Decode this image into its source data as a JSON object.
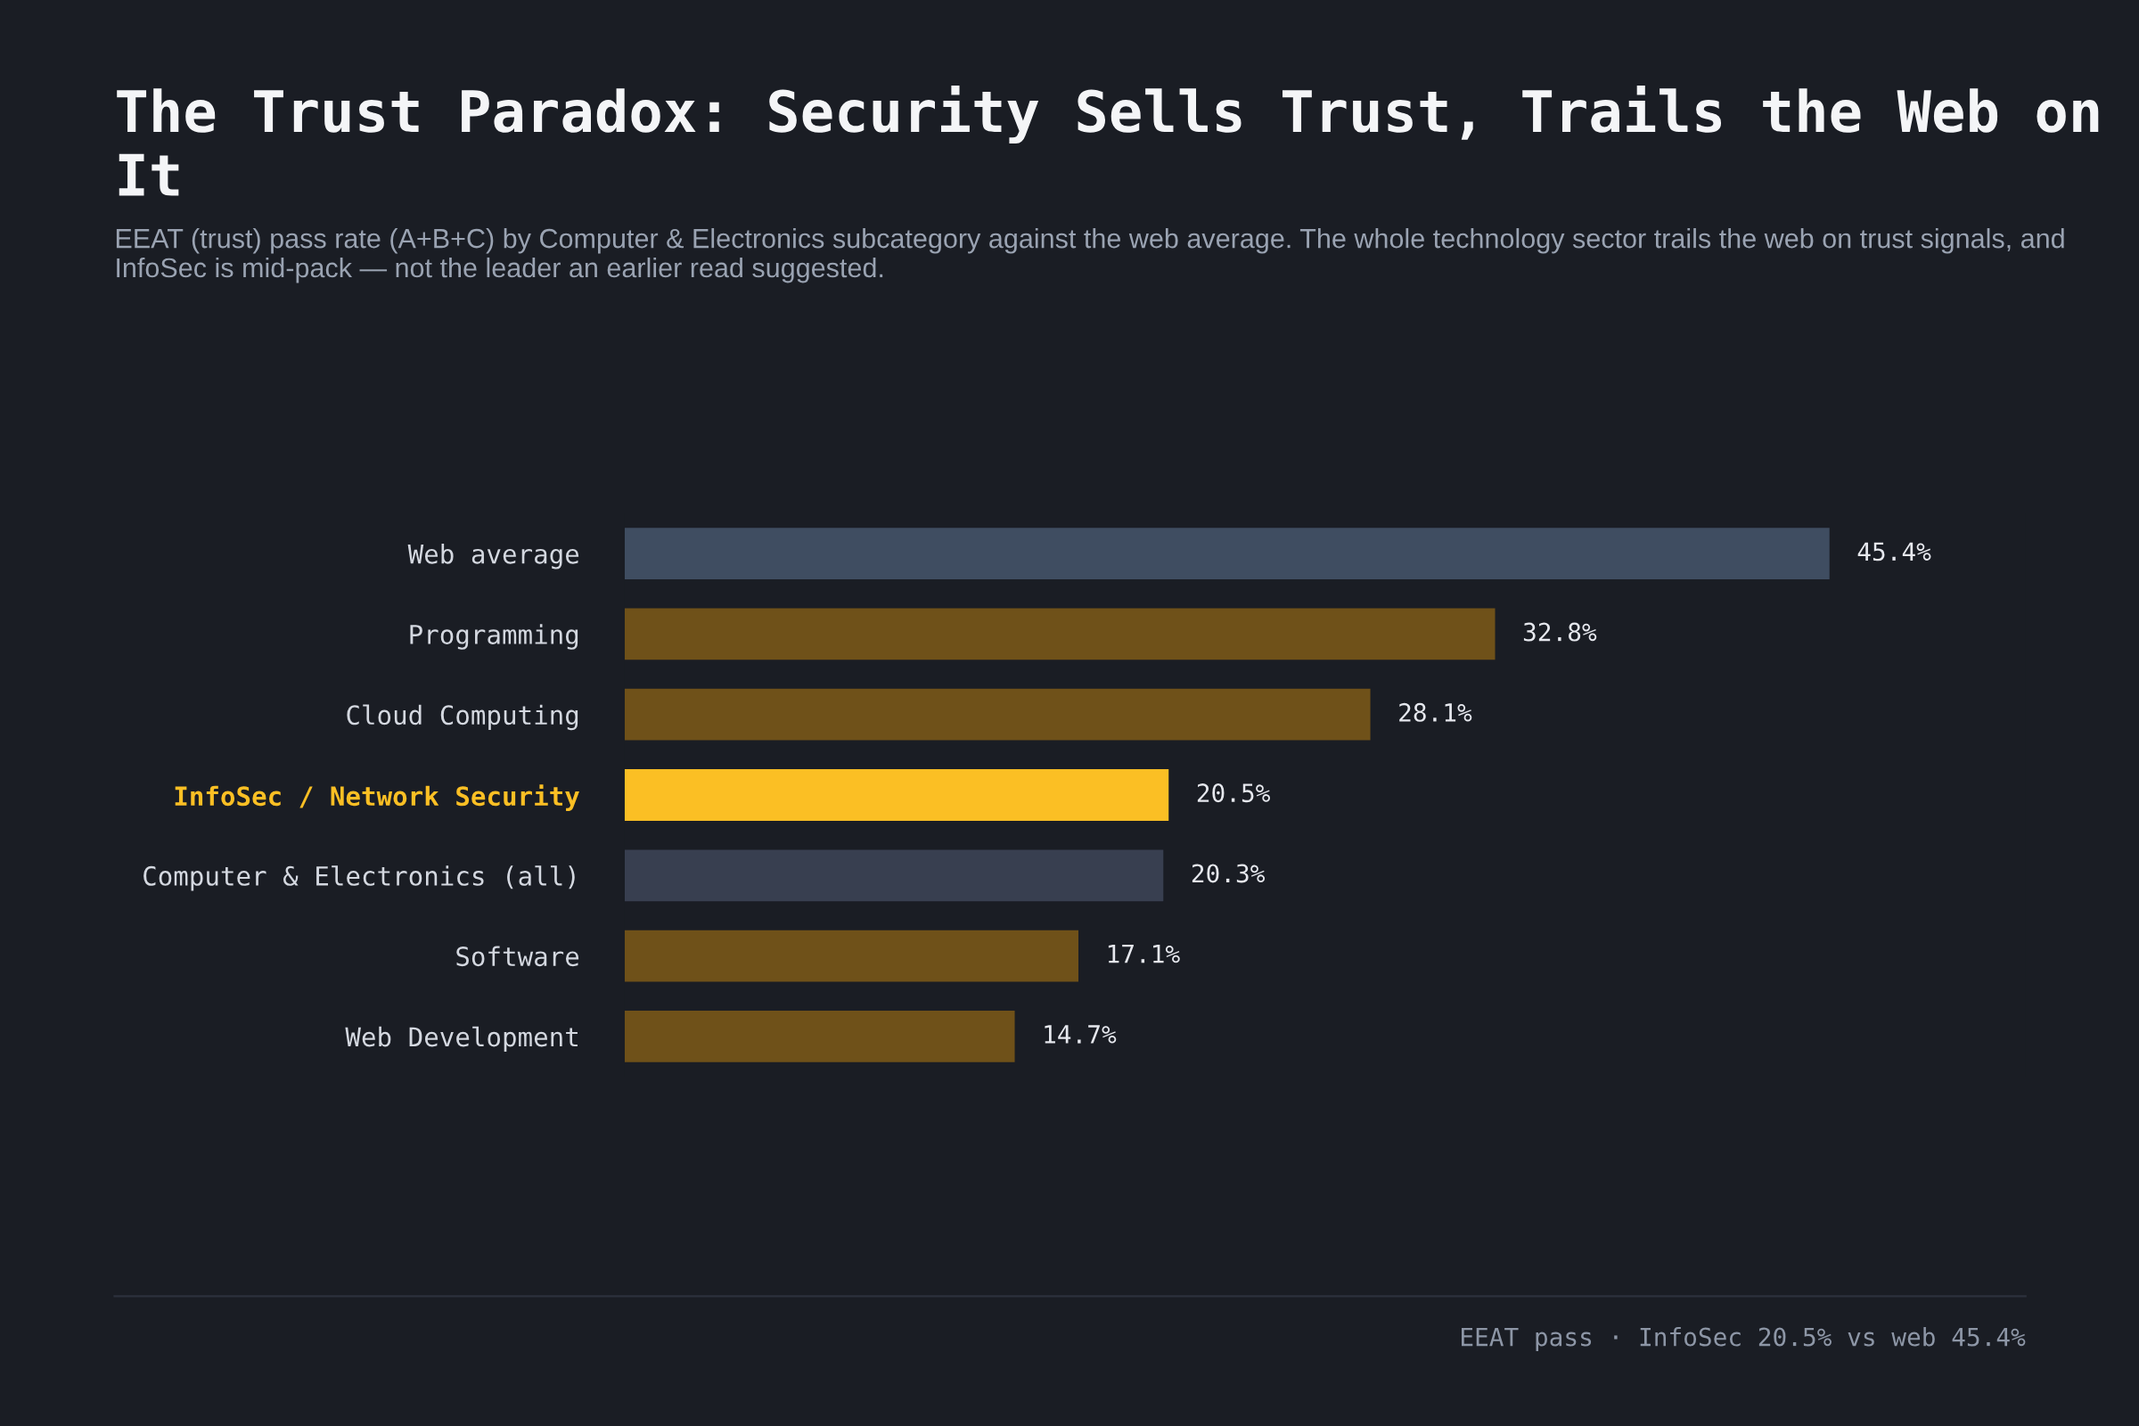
{
  "chart_data": {
    "type": "bar",
    "orientation": "horizontal",
    "title": "The Trust Paradox: Security Sells Trust, Trails the Web on It",
    "subtitle": "EEAT (trust) pass rate (A+B+C) by Computer & Electronics subcategory against the web average. The whole technology sector trails the web on trust signals, and InfoSec is mid-pack — not the leader an earlier read suggested.",
    "categories": [
      "Web average",
      "Programming",
      "Cloud Computing",
      "InfoSec / Network Security",
      "Computer & Electronics (all)",
      "Software",
      "Web Development"
    ],
    "values": [
      45.4,
      32.8,
      28.1,
      20.5,
      20.3,
      17.1,
      14.7
    ],
    "colors": [
      "#3f4d61",
      "#6f5119",
      "#6f5119",
      "#fbbf24",
      "#383f50",
      "#6f5119",
      "#6f5119"
    ],
    "value_labels": [
      "45.4%",
      "32.8%",
      "28.1%",
      "20.5%",
      "20.3%",
      "17.1%",
      "14.7%"
    ],
    "annotations": [
      "EEAT pass · InfoSec 20.5% vs web 45.4%"
    ]
  }
}
